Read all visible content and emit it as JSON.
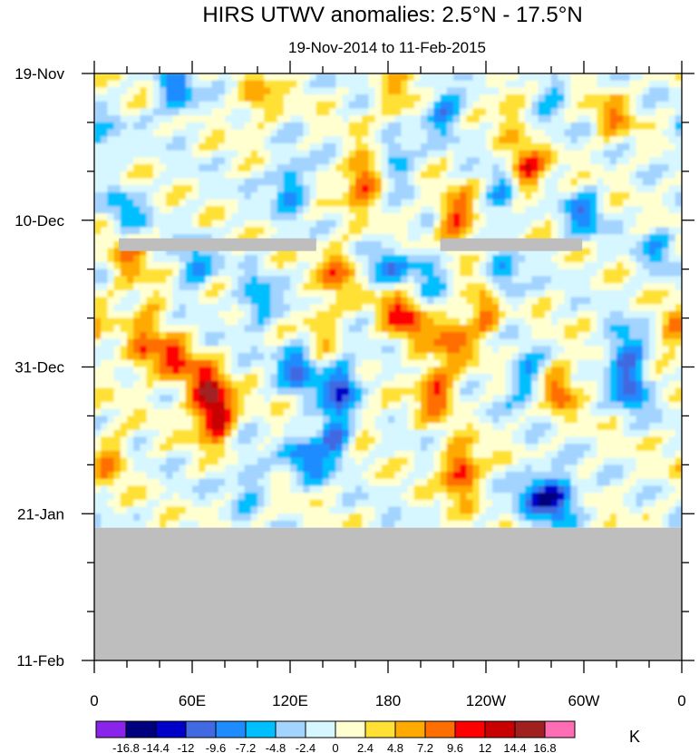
{
  "chart_data": {
    "type": "heatmap",
    "title": "HIRS UTWV anomalies: 2.5°N - 17.5°N",
    "subtitle": "19-Nov-2014 to 11-Feb-2015",
    "x_tick_labels": [
      "0",
      "60E",
      "120E",
      "180",
      "120W",
      "60W",
      "0"
    ],
    "x_tick_lon": [
      0,
      60,
      120,
      180,
      240,
      300,
      360
    ],
    "xlim": [
      0,
      360
    ],
    "y_tick_labels": [
      "19-Nov",
      "10-Dec",
      "31-Dec",
      "21-Jan",
      "11-Feb"
    ],
    "y_tick_day": [
      0,
      21,
      42,
      63,
      84
    ],
    "ylim_days": [
      0,
      84
    ],
    "data_end_day": 65,
    "missing_data_strips": [
      {
        "day": 24.5,
        "lon": [
          15,
          136
        ]
      },
      {
        "day": 24.5,
        "lon": [
          212,
          299
        ]
      }
    ],
    "missing_color": "#bebebe",
    "colorbar": {
      "unit": "K",
      "levels": [
        "-16.8",
        "-14.4",
        "-12",
        "-9.6",
        "-7.2",
        "-4.8",
        "-2.4",
        "0",
        "2.4",
        "4.8",
        "7.2",
        "9.6",
        "12",
        "14.4",
        "16.8"
      ],
      "colors": [
        "#8b24ea",
        "#00007e",
        "#0000c8",
        "#4169e1",
        "#1e8cff",
        "#00bfff",
        "#a3d3ff",
        "#d6f7ff",
        "#ffffd0",
        "#ffe135",
        "#ffaa00",
        "#ff6e00",
        "#ff0000",
        "#c80000",
        "#a02020",
        "#ff6eb4"
      ]
    },
    "anomaly_features": [
      {
        "lon": 75,
        "day": 49,
        "value": 15
      },
      {
        "lon": 68,
        "day": 45,
        "value": 11
      },
      {
        "lon": 50,
        "day": 41,
        "value": 9
      },
      {
        "lon": 30,
        "day": 40,
        "value": 8
      },
      {
        "lon": 20,
        "day": 27,
        "value": 7
      },
      {
        "lon": 165,
        "day": 15,
        "value": 12
      },
      {
        "lon": 195,
        "day": 36,
        "value": 8
      },
      {
        "lon": 183,
        "day": 33,
        "value": 7
      },
      {
        "lon": 210,
        "day": 45,
        "value": 11
      },
      {
        "lon": 225,
        "day": 57,
        "value": 13
      },
      {
        "lon": 220,
        "day": 38,
        "value": 8
      },
      {
        "lon": 240,
        "day": 34,
        "value": 10
      },
      {
        "lon": 222,
        "day": 21,
        "value": 11
      },
      {
        "lon": 265,
        "day": 14,
        "value": 11
      },
      {
        "lon": 285,
        "day": 45,
        "value": 9
      },
      {
        "lon": 150,
        "day": 28,
        "value": 8
      },
      {
        "lon": 140,
        "day": 36,
        "value": 6
      },
      {
        "lon": 10,
        "day": 55,
        "value": 7
      },
      {
        "lon": 355,
        "day": 37,
        "value": 7
      },
      {
        "lon": 318,
        "day": 6,
        "value": 6
      },
      {
        "lon": 185,
        "day": 4,
        "value": 6
      },
      {
        "lon": 100,
        "day": 4,
        "value": 6
      },
      {
        "lon": 255,
        "day": 4,
        "value": 5
      },
      {
        "lon": 160,
        "day": 50,
        "value": 5
      },
      {
        "lon": 50,
        "day": 3,
        "value": -9
      },
      {
        "lon": 120,
        "day": 16,
        "value": -9
      },
      {
        "lon": 60,
        "day": 28,
        "value": -8
      },
      {
        "lon": 100,
        "day": 33,
        "value": -8
      },
      {
        "lon": 125,
        "day": 42,
        "value": -10
      },
      {
        "lon": 152,
        "day": 45,
        "value": -13
      },
      {
        "lon": 148,
        "day": 52,
        "value": -12
      },
      {
        "lon": 130,
        "day": 55,
        "value": -8
      },
      {
        "lon": 185,
        "day": 12,
        "value": -8
      },
      {
        "lon": 215,
        "day": 5,
        "value": -9
      },
      {
        "lon": 180,
        "day": 28,
        "value": -8
      },
      {
        "lon": 205,
        "day": 28,
        "value": -7
      },
      {
        "lon": 250,
        "day": 30,
        "value": -8
      },
      {
        "lon": 265,
        "day": 44,
        "value": -8
      },
      {
        "lon": 285,
        "day": 61,
        "value": -12
      },
      {
        "lon": 270,
        "day": 60,
        "value": -9
      },
      {
        "lon": 325,
        "day": 40,
        "value": -10
      },
      {
        "lon": 330,
        "day": 45,
        "value": -9
      },
      {
        "lon": 300,
        "day": 20,
        "value": -8
      },
      {
        "lon": 250,
        "day": 18,
        "value": -7
      },
      {
        "lon": 20,
        "day": 20,
        "value": -6
      },
      {
        "lon": 95,
        "day": 58,
        "value": -6
      },
      {
        "lon": 280,
        "day": 2,
        "value": -6
      },
      {
        "lon": 35,
        "day": 33,
        "value": 5
      },
      {
        "lon": 345,
        "day": 25,
        "value": -5
      },
      {
        "lon": 5,
        "day": 10,
        "value": -5
      }
    ]
  }
}
